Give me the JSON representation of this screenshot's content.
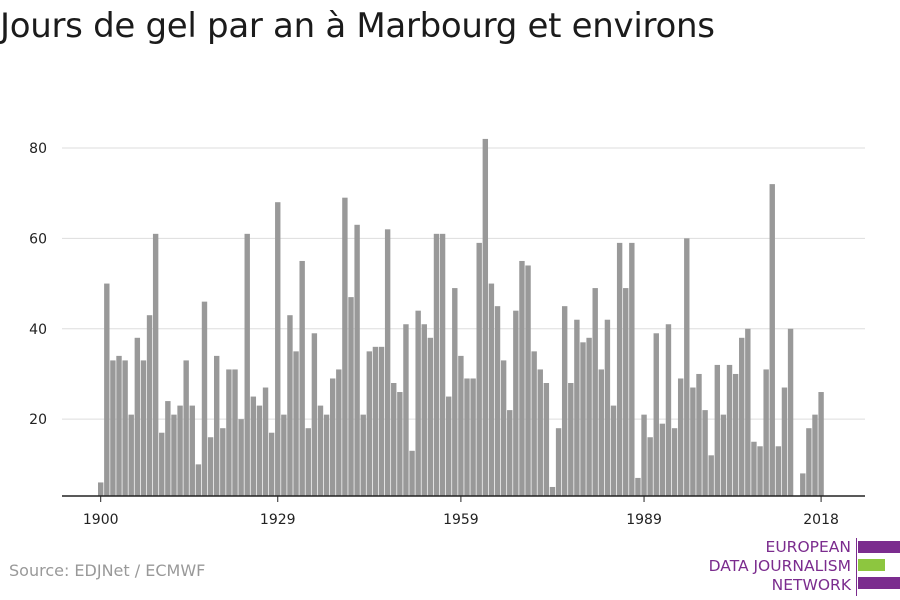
{
  "title": "Jours de gel par an à Marbourg et environs",
  "source": "Source: EDJNet / ECMWF",
  "logo": {
    "line1": "EUROPEAN",
    "line2": "DATA JOURNALISM",
    "line3": "NETWORK",
    "purple": "#7b2c8e",
    "green": "#8dc63f"
  },
  "colors": {
    "bar": "#999999",
    "grid": "#dddddd",
    "axis": "#222222"
  },
  "chart_data": {
    "type": "bar",
    "title": "Jours de gel par an à Marbourg et environs",
    "xlabel": "",
    "ylabel": "",
    "x_start": 1900,
    "x_ticks": [
      1900,
      1929,
      1959,
      1989,
      2018
    ],
    "y_ticks": [
      20,
      40,
      60,
      80
    ],
    "ylim": [
      3,
      85
    ],
    "grid": true,
    "values": [
      6,
      50,
      33,
      34,
      33,
      21,
      38,
      33,
      43,
      61,
      17,
      24,
      21,
      23,
      33,
      23,
      10,
      46,
      16,
      34,
      18,
      31,
      31,
      20,
      61,
      25,
      23,
      27,
      17,
      68,
      21,
      43,
      35,
      55,
      18,
      39,
      23,
      21,
      29,
      31,
      69,
      47,
      63,
      21,
      35,
      36,
      36,
      62,
      28,
      26,
      41,
      13,
      44,
      41,
      38,
      61,
      61,
      25,
      49,
      34,
      29,
      29,
      59,
      82,
      50,
      45,
      33,
      22,
      44,
      55,
      54,
      35,
      31,
      28,
      5,
      18,
      45,
      28,
      42,
      37,
      38,
      49,
      31,
      42,
      23,
      59,
      49,
      59,
      7,
      21,
      16,
      39,
      19,
      41,
      18,
      29,
      60,
      27,
      30,
      22,
      12,
      32,
      21,
      32,
      30,
      38,
      40,
      15,
      14,
      31,
      72,
      14,
      27,
      40,
      3,
      8,
      18,
      21,
      26
    ]
  }
}
